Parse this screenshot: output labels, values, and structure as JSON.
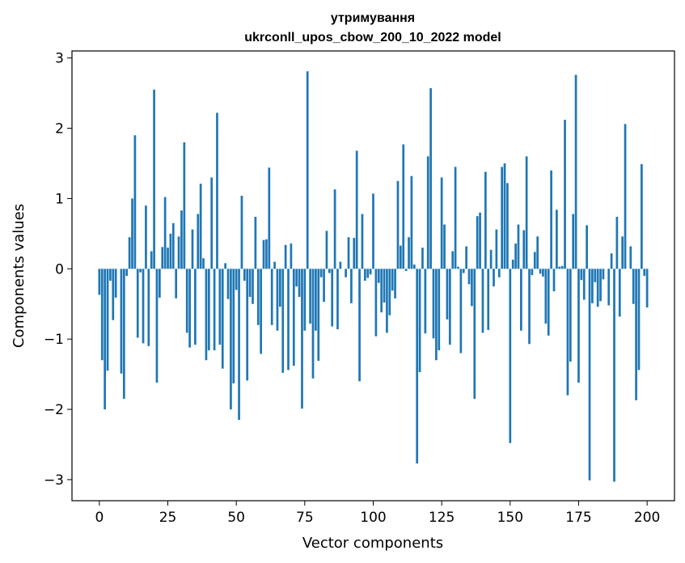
{
  "chart_data": {
    "type": "bar",
    "title_line1": "утримування",
    "title_line2": "ukrconll_upos_cbow_200_10_2022 model",
    "xlabel": "Vector components",
    "ylabel": "Components values",
    "xlim": [
      -10,
      210
    ],
    "ylim": [
      -3.3,
      3.1
    ],
    "x_ticks": [
      0,
      25,
      50,
      75,
      100,
      125,
      150,
      175,
      200
    ],
    "x_tick_labels": [
      "0",
      "25",
      "50",
      "75",
      "100",
      "125",
      "150",
      "175",
      "200"
    ],
    "y_ticks": [
      -3,
      -2,
      -1,
      0,
      1,
      2,
      3
    ],
    "y_tick_labels": [
      "−3",
      "−2",
      "−1",
      "0",
      "1",
      "2",
      "3"
    ],
    "bar_color": "#1f77b4",
    "values": [
      -0.37,
      -1.3,
      -2.0,
      -1.45,
      -0.17,
      -0.73,
      -0.41,
      0.0,
      -1.49,
      -1.85,
      -0.1,
      0.45,
      1.0,
      1.9,
      -0.98,
      -0.05,
      -1.06,
      0.9,
      -1.1,
      0.25,
      2.55,
      -1.62,
      -0.41,
      0.31,
      1.02,
      0.3,
      0.5,
      0.65,
      -0.42,
      0.46,
      0.83,
      1.8,
      -0.91,
      -1.12,
      0.56,
      -1.08,
      0.78,
      1.21,
      0.15,
      -1.3,
      -1.16,
      1.3,
      -1.16,
      2.22,
      -1.08,
      -1.42,
      0.08,
      -0.43,
      -2.0,
      -1.63,
      -0.3,
      -2.15,
      1.04,
      -0.17,
      -1.59,
      -0.4,
      -0.5,
      0.74,
      -0.8,
      -1.21,
      0.41,
      0.42,
      1.44,
      -0.8,
      0.1,
      -0.88,
      -0.54,
      -1.48,
      0.34,
      -1.44,
      0.36,
      -1.38,
      -0.25,
      -0.4,
      -1.99,
      -0.88,
      2.81,
      -0.78,
      -1.56,
      -0.88,
      -1.31,
      -0.12,
      -0.47,
      0.54,
      -0.06,
      -0.82,
      1.13,
      -0.86,
      0.1,
      0.0,
      -0.12,
      0.45,
      -0.49,
      0.44,
      1.68,
      -1.6,
      0.78,
      -0.17,
      -0.13,
      -0.08,
      1.07,
      -0.96,
      -0.2,
      -0.62,
      -0.48,
      -0.91,
      -0.66,
      -0.31,
      -0.42,
      1.25,
      0.33,
      1.77,
      -0.03,
      0.45,
      1.32,
      0.06,
      -2.77,
      -1.47,
      0.3,
      -0.92,
      1.6,
      2.57,
      -0.99,
      -1.3,
      -1.16,
      1.3,
      0.63,
      -0.72,
      -1.08,
      0.25,
      1.45,
      0.03,
      -1.2,
      -0.06,
      0.32,
      -0.22,
      -0.53,
      -1.85,
      0.75,
      0.8,
      -0.91,
      1.38,
      -0.87,
      0.27,
      -0.25,
      0.56,
      -0.12,
      1.45,
      1.5,
      1.22,
      -2.48,
      0.13,
      0.36,
      0.63,
      -0.88,
      0.55,
      1.6,
      -1.07,
      -0.09,
      0.24,
      0.46,
      -0.07,
      -0.11,
      -0.78,
      -0.95,
      1.4,
      -0.32,
      0.84,
      0.03,
      0.04,
      2.12,
      -1.8,
      -1.32,
      0.78,
      2.76,
      -1.62,
      -0.16,
      -0.44,
      0.62,
      -3.01,
      -0.49,
      -0.19,
      -0.54,
      -0.46,
      -0.15,
      0.0,
      -0.52,
      0.22,
      -3.03,
      0.74,
      -0.68,
      0.46,
      2.06,
      0.0,
      0.32,
      -0.5,
      -1.87,
      -1.44,
      1.49,
      -0.1,
      -0.55
    ]
  }
}
